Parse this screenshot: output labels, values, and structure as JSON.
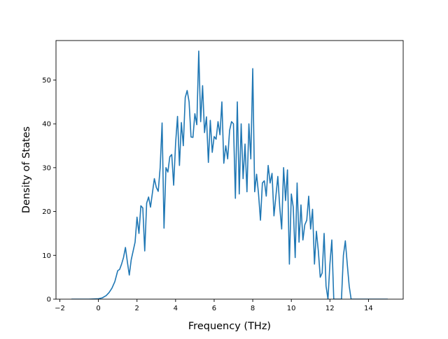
{
  "chart_data": {
    "type": "line",
    "title": "",
    "xlabel": "Frequency (THz)",
    "ylabel": "Density of States",
    "xlim": [
      -2.2,
      15.8
    ],
    "ylim": [
      0,
      59
    ],
    "xticks": [
      -2,
      0,
      2,
      4,
      6,
      8,
      10,
      12,
      14
    ],
    "xtick_labels": [
      "−2",
      "0",
      "2",
      "4",
      "6",
      "8",
      "10",
      "12",
      "14"
    ],
    "yticks": [
      0,
      10,
      20,
      30,
      40,
      50
    ],
    "ytick_labels": [
      "0",
      "10",
      "20",
      "30",
      "40",
      "50"
    ],
    "grid": false,
    "legend": "none",
    "line_color": "#1f77b4",
    "series": [
      {
        "x": [
          -1.4,
          -1.0,
          -0.5,
          0.0,
          0.2,
          0.4,
          0.55,
          0.7,
          0.85,
          1.0,
          1.1,
          1.2,
          1.3,
          1.4,
          1.5,
          1.6,
          1.7,
          1.8,
          1.9,
          2.0,
          2.1,
          2.2,
          2.3,
          2.4,
          2.5,
          2.6,
          2.7,
          2.8,
          2.9,
          3.0,
          3.1,
          3.2,
          3.3,
          3.4,
          3.5,
          3.6,
          3.7,
          3.8,
          3.9,
          4.0,
          4.1,
          4.2,
          4.3,
          4.4,
          4.5,
          4.6,
          4.7,
          4.8,
          4.9,
          5.0,
          5.1,
          5.2,
          5.3,
          5.4,
          5.5,
          5.6,
          5.7,
          5.8,
          5.9,
          6.0,
          6.1,
          6.2,
          6.3,
          6.4,
          6.5,
          6.6,
          6.7,
          6.8,
          6.9,
          7.0,
          7.1,
          7.2,
          7.3,
          7.4,
          7.5,
          7.6,
          7.7,
          7.8,
          7.9,
          8.0,
          8.1,
          8.2,
          8.3,
          8.4,
          8.5,
          8.6,
          8.7,
          8.8,
          8.9,
          9.0,
          9.1,
          9.2,
          9.3,
          9.4,
          9.5,
          9.6,
          9.7,
          9.8,
          9.9,
          10.0,
          10.1,
          10.2,
          10.3,
          10.4,
          10.5,
          10.6,
          10.7,
          10.8,
          10.9,
          11.0,
          11.1,
          11.2,
          11.3,
          11.4,
          11.5,
          11.6,
          11.7,
          11.8,
          11.9,
          12.0,
          12.1,
          12.2,
          12.3,
          12.4,
          12.5,
          12.6,
          12.7,
          12.8,
          12.9,
          13.0,
          13.1,
          13.2,
          13.5,
          14.0,
          15.0
        ],
        "y": [
          0,
          0,
          0,
          0.1,
          0.3,
          0.8,
          1.5,
          2.5,
          4.0,
          6.5,
          6.8,
          8.0,
          9.5,
          11.8,
          8.5,
          5.5,
          9.0,
          11.0,
          13.0,
          18.7,
          15.0,
          21.3,
          20.8,
          11.0,
          21.9,
          23.3,
          21.0,
          24.3,
          27.5,
          25.5,
          24.6,
          30.0,
          40.2,
          16.2,
          30.0,
          29.0,
          32.5,
          33.0,
          26.0,
          35.5,
          41.7,
          30.5,
          40.3,
          35.0,
          46.0,
          47.6,
          45.0,
          37.0,
          36.9,
          42.3,
          39.8,
          56.6,
          40.5,
          48.7,
          38.0,
          41.6,
          31.2,
          40.8,
          33.5,
          37.1,
          36.5,
          40.5,
          37.5,
          45.0,
          31.0,
          35.0,
          32.0,
          38.5,
          40.5,
          40.0,
          23.0,
          45.0,
          24.0,
          40.0,
          27.5,
          35.4,
          24.5,
          40.0,
          32.0,
          52.6,
          24.5,
          28.5,
          24.0,
          18.0,
          26.5,
          27.0,
          23.5,
          30.5,
          26.5,
          28.7,
          19.0,
          23.5,
          28.0,
          21.0,
          16.0,
          30.0,
          22.5,
          29.5,
          8.0,
          24.0,
          21.0,
          9.5,
          26.5,
          13.0,
          21.5,
          13.5,
          17.0,
          18.0,
          23.5,
          16.0,
          20.5,
          8.0,
          15.5,
          11.0,
          5.0,
          6.0,
          15.0,
          3.0,
          0.0,
          8.0,
          13.5,
          0,
          0,
          0,
          0,
          0,
          10.0,
          13.3,
          8.0,
          3.0,
          0,
          0,
          0,
          0,
          0
        ]
      }
    ]
  }
}
